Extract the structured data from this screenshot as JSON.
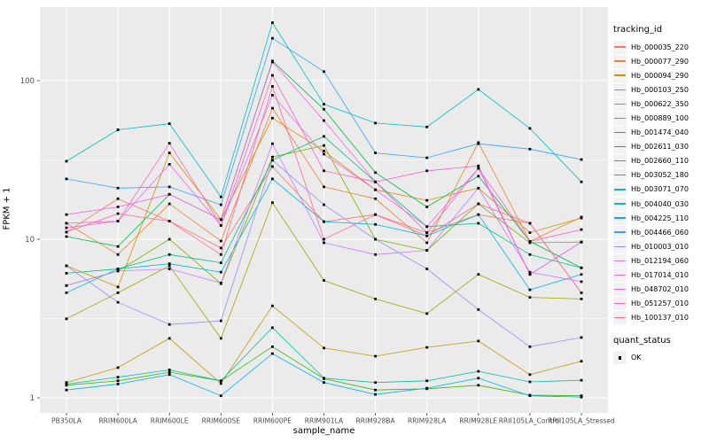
{
  "chart_data": {
    "type": "line",
    "title": "",
    "xlabel": "sample_name",
    "ylabel": "FPKM + 1",
    "y_scale": "log10",
    "grid": true,
    "panel_bg": "#EBEBEB",
    "grid_color": "#FFFFFF",
    "point_shape": "filled-square",
    "point_color": "#000000",
    "y_ticks": [
      1,
      10,
      100
    ],
    "y_minor_ticks": [
      3.162,
      31.62
    ],
    "ylim_log": [
      0.85,
      290
    ],
    "categories": [
      "PB350LA",
      "RRIM600LA",
      "RRIM600LE",
      "RRIM600SE",
      "RRIM600PE",
      "RRIM901LA",
      "RRIM928BA",
      "RRIM928LA",
      "RRIM928LE",
      "RRII105LA_Control",
      "RRII105LA_Stressed"
    ],
    "series": [
      {
        "name": "Hb_000035_220",
        "color": "#F8766D",
        "values": [
          11.1,
          18,
          13,
          8.8,
          28.7,
          12.9,
          14.3,
          11,
          14.3,
          12.6,
          4.6
        ]
      },
      {
        "name": "Hb_000077_290",
        "color": "#EA8331",
        "values": [
          12.6,
          8.0,
          16.7,
          9.75,
          67,
          21.4,
          18,
          9.5,
          40.7,
          9.7,
          13.8
        ]
      },
      {
        "name": "Hb_000094_290",
        "color": "#D89000",
        "values": [
          6.8,
          5.0,
          35,
          13.3,
          58,
          36,
          20.5,
          17.6,
          21,
          11,
          13.6
        ]
      },
      {
        "name": "Hb_000103_250",
        "color": "#C09B00",
        "values": [
          1.25,
          1.55,
          2.37,
          1.23,
          3.8,
          2.06,
          1.83,
          2.08,
          2.28,
          1.4,
          1.7
        ]
      },
      {
        "name": "Hb_000622_350",
        "color": "#A3A500",
        "values": [
          3.15,
          4.6,
          6.8,
          2.37,
          17,
          5.5,
          4.2,
          3.4,
          6.0,
          4.3,
          4.2
        ]
      },
      {
        "name": "Hb_000889_100",
        "color": "#7CAE00",
        "values": [
          5.1,
          6.3,
          10,
          5.25,
          33,
          39,
          10,
          8.5,
          16.7,
          9.5,
          9.6
        ]
      },
      {
        "name": "Hb_001474_040",
        "color": "#39B600",
        "values": [
          1.2,
          1.28,
          1.45,
          1.28,
          2.1,
          1.32,
          1.12,
          1.14,
          1.2,
          1.04,
          1.03
        ]
      },
      {
        "name": "Hb_002611_030",
        "color": "#00BB4E",
        "values": [
          10.4,
          9.0,
          19.2,
          13.3,
          133,
          66,
          26.3,
          16,
          25,
          9.7,
          6.6
        ]
      },
      {
        "name": "Hb_002660_110",
        "color": "#00BF7D",
        "values": [
          6.1,
          6.5,
          8.0,
          7.1,
          31.5,
          44.5,
          23,
          12,
          12.6,
          8.0,
          6.6
        ]
      },
      {
        "name": "Hb_003052_180",
        "color": "#00C1A3",
        "values": [
          1.22,
          1.35,
          1.5,
          1.28,
          2.77,
          1.33,
          1.25,
          1.28,
          1.47,
          1.26,
          1.29
        ]
      },
      {
        "name": "Hb_003071_070",
        "color": "#00BFC4",
        "values": [
          31,
          49,
          53.5,
          18.5,
          232,
          71,
          54,
          51,
          88,
          50,
          23
        ]
      },
      {
        "name": "Hb_004040_030",
        "color": "#00BAE0",
        "values": [
          4.6,
          6.5,
          7.0,
          6.2,
          24,
          12.9,
          12.4,
          10.5,
          14.3,
          4.8,
          6.0
        ]
      },
      {
        "name": "Hb_004225_110",
        "color": "#00B0F6",
        "values": [
          1.12,
          1.22,
          1.4,
          1.03,
          1.9,
          1.25,
          1.05,
          1.15,
          1.33,
          1.03,
          1.01
        ]
      },
      {
        "name": "Hb_004466_060",
        "color": "#35A2FF",
        "values": [
          24,
          21,
          21.4,
          16.5,
          185,
          114,
          35,
          32.6,
          40,
          37,
          31.8
        ]
      },
      {
        "name": "Hb_010003_010",
        "color": "#9590FF",
        "values": [
          6.8,
          4.0,
          2.9,
          3.06,
          31.5,
          16.5,
          10,
          6.5,
          3.6,
          2.1,
          2.4
        ]
      },
      {
        "name": "Hb_012194_060",
        "color": "#C77CFF",
        "values": [
          5.1,
          6.3,
          6.5,
          5.3,
          40,
          9.5,
          8.0,
          8.5,
          21,
          6.2,
          5.4
        ]
      },
      {
        "name": "Hb_017014_010",
        "color": "#E76BF3",
        "values": [
          11.8,
          13,
          29.7,
          12.2,
          81,
          34.4,
          20.5,
          12,
          28,
          6.0,
          9.6
        ]
      },
      {
        "name": "Hb_048702_010",
        "color": "#FA62DB",
        "values": [
          14.3,
          16,
          19.2,
          13.3,
          131,
          56,
          23,
          27,
          29,
          6.0,
          9.6
        ]
      },
      {
        "name": "Hb_051257_010",
        "color": "#FF62BC",
        "values": [
          12.6,
          13.0,
          40.3,
          12.2,
          108,
          27,
          23,
          11,
          28,
          9.7,
          11.5
        ]
      },
      {
        "name": "Hb_100137_010",
        "color": "#FF6A98",
        "values": [
          11.1,
          14.5,
          13.0,
          8.0,
          92,
          10,
          14.3,
          10.5,
          16.7,
          12.6,
          4.6
        ]
      }
    ],
    "legend_position": "right"
  },
  "legend": {
    "tracking_title": "tracking_id",
    "quant_title": "quant_status",
    "quant_items": [
      {
        "label": "OK"
      }
    ]
  }
}
